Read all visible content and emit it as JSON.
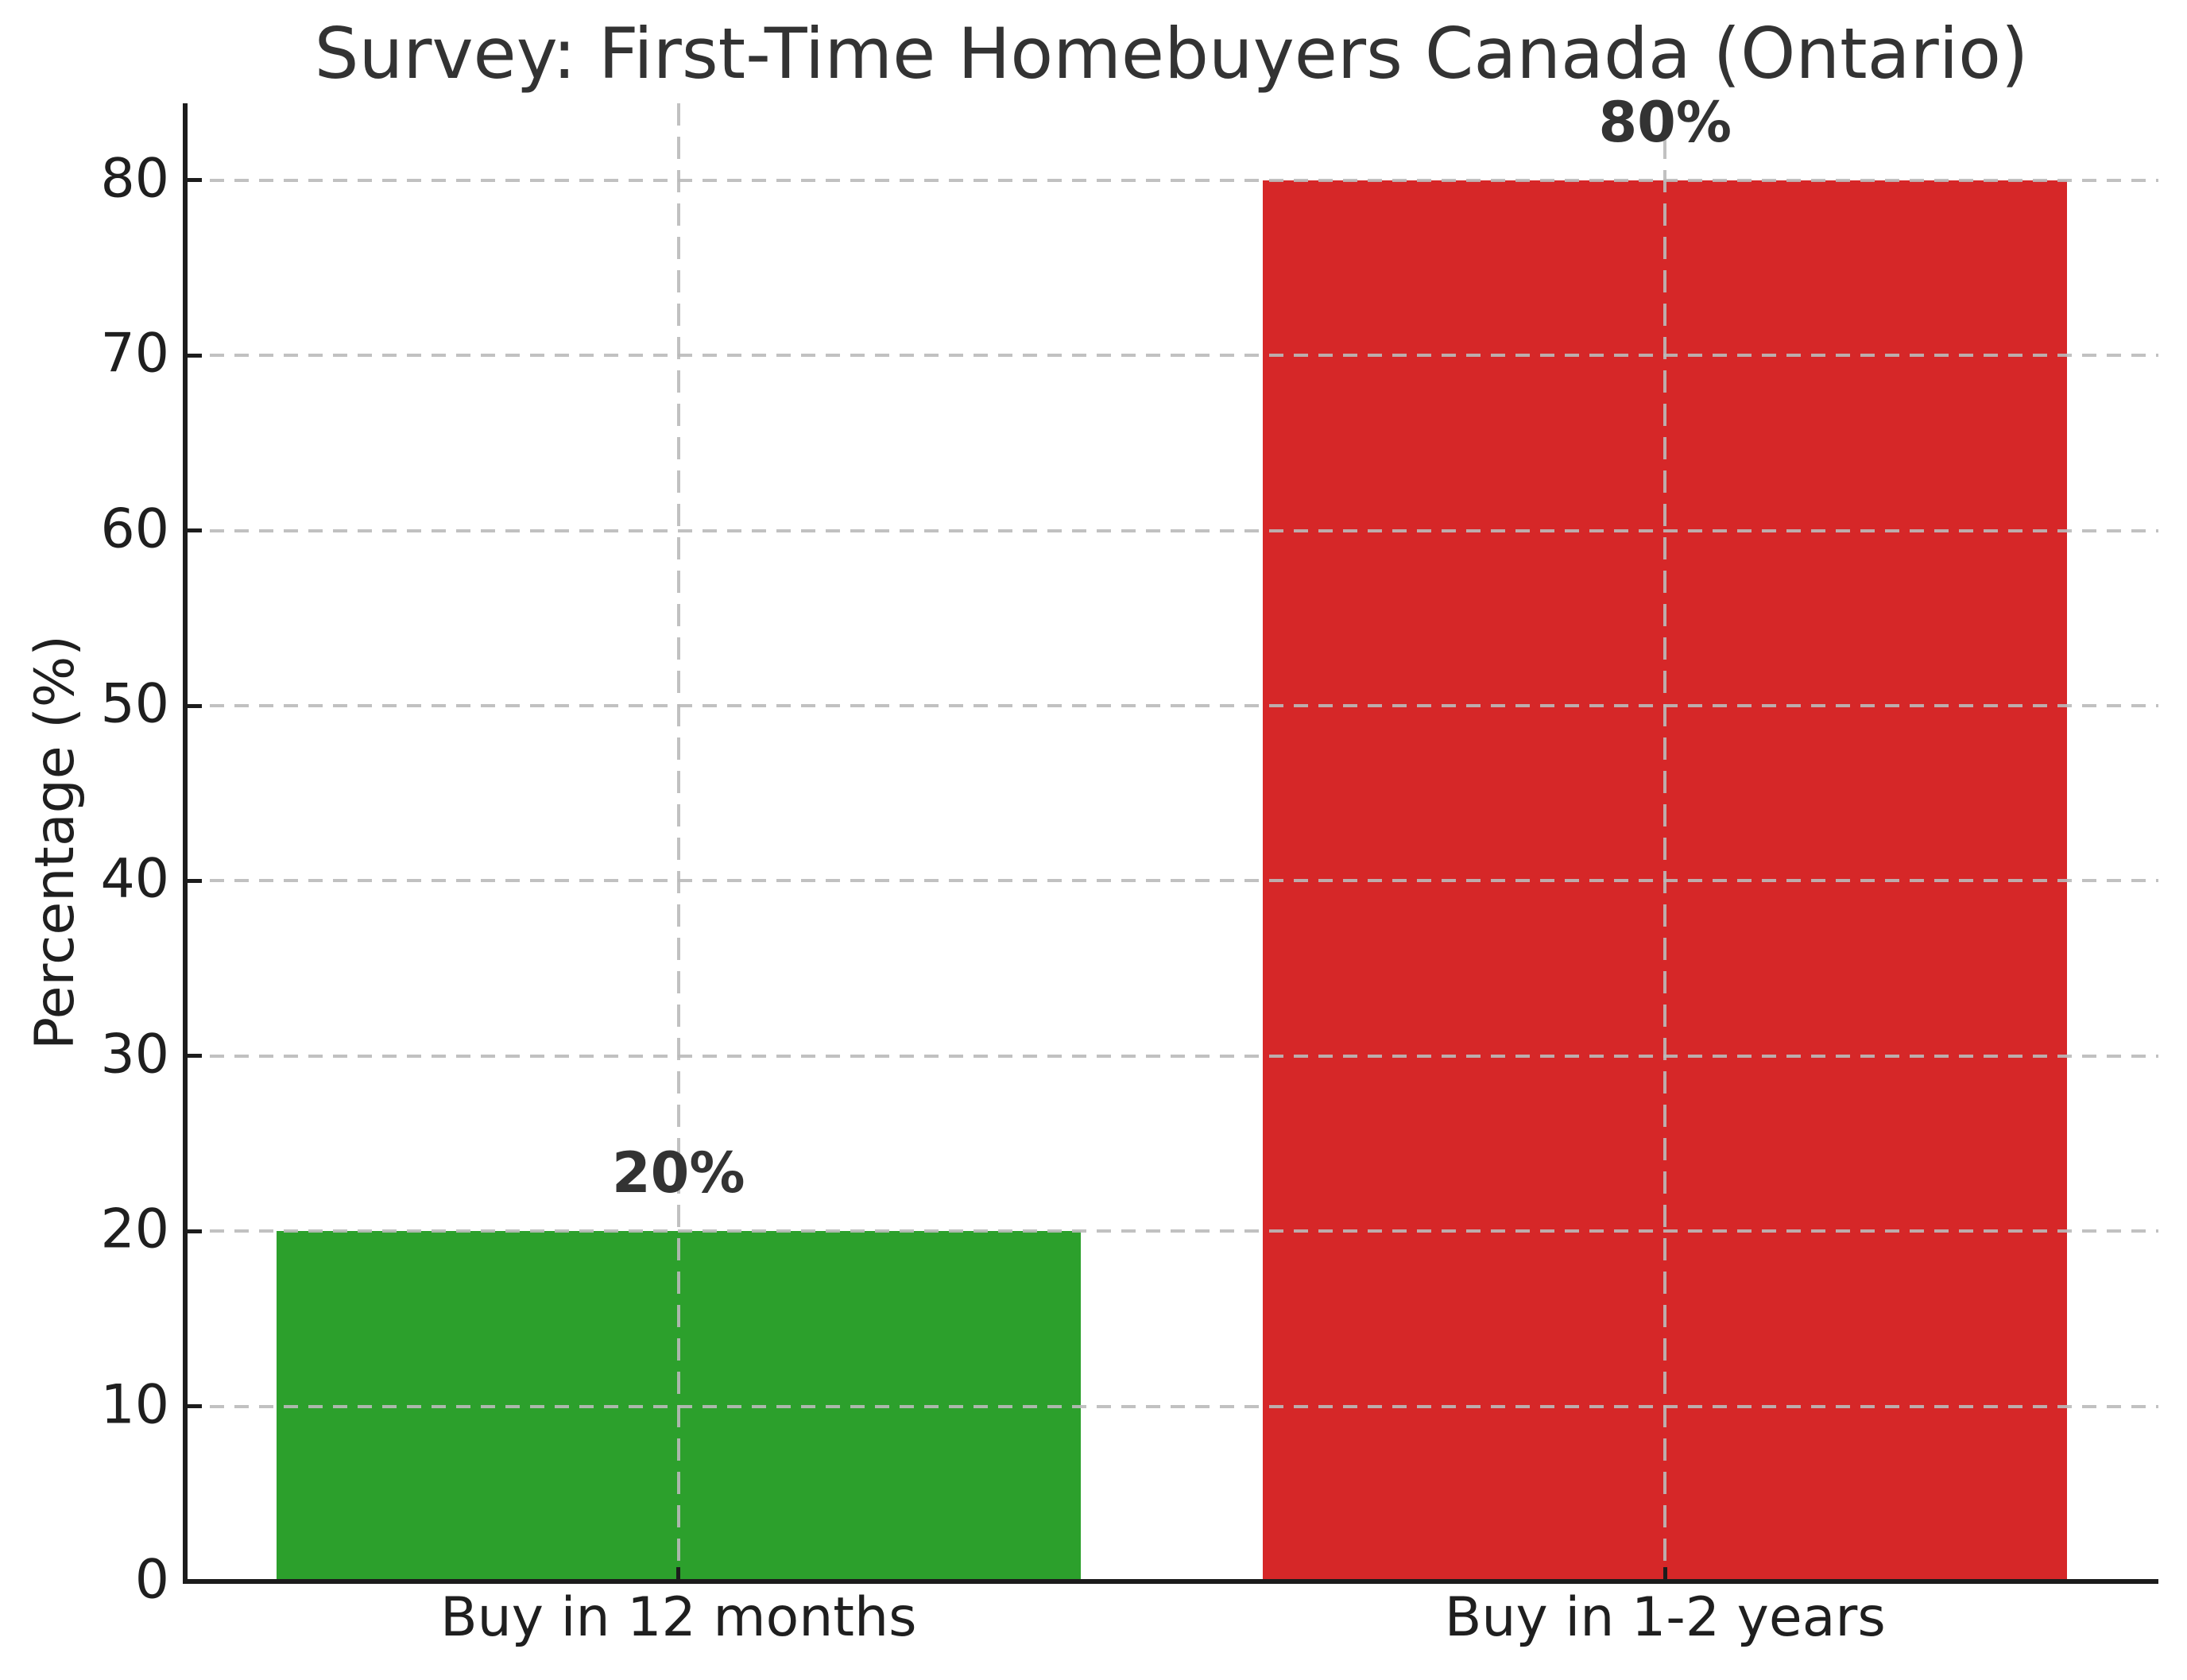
{
  "chart_data": {
    "type": "bar",
    "title": "Survey: First-Time Homebuyers Canada (Ontario)",
    "xlabel": "",
    "ylabel": "Percentage (%)",
    "categories": [
      "Buy in 12 months",
      "Buy in 1-2 years"
    ],
    "values": [
      20,
      80
    ],
    "bar_labels": [
      "20%",
      "80%"
    ],
    "bar_colors": [
      "#2ca02c",
      "#d62728"
    ],
    "yticks": [
      0,
      10,
      20,
      30,
      40,
      50,
      60,
      70,
      80
    ],
    "ylim": [
      0,
      84.4
    ],
    "grid": {
      "style": "dashed",
      "horizontal_at_yticks": true,
      "vertical_at_bar_centers": true
    },
    "legend": null
  },
  "style": {
    "background": "#ffffff",
    "grid_color": "#bababa",
    "spine_color": "#1c1c1c",
    "tick_text_color": "#1f1f1f",
    "title_color": "#333333",
    "value_label_color": "#333333"
  }
}
